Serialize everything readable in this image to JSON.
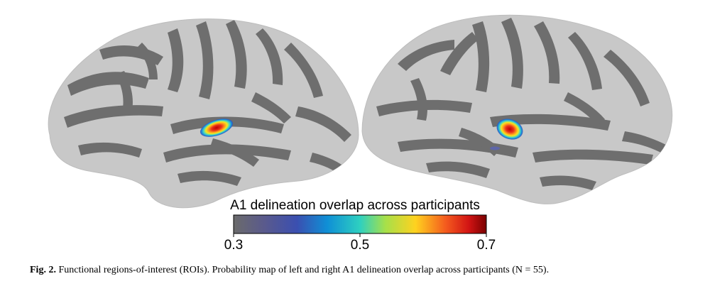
{
  "figure": {
    "colorbar": {
      "title": "A1 delineation overlap across participants",
      "min": 0.3,
      "max": 0.7,
      "ticks": [
        "0.3",
        "0.5",
        "0.7"
      ],
      "colormap": "jet",
      "low_color": "#6b6b6b",
      "high_color": "#7a0000"
    },
    "hemispheres": [
      {
        "name": "left",
        "peak_overlap": 0.68
      },
      {
        "name": "right",
        "peak_overlap": 0.7
      }
    ],
    "colors": {
      "sulci": "#6e6e6e",
      "gyri": "#c8c8c8"
    }
  },
  "caption": {
    "label": "Fig. 2.",
    "text": "Functional regions-of-interest (ROIs). Probability map of left and right A1 delineation overlap across participants (N = 55)."
  }
}
